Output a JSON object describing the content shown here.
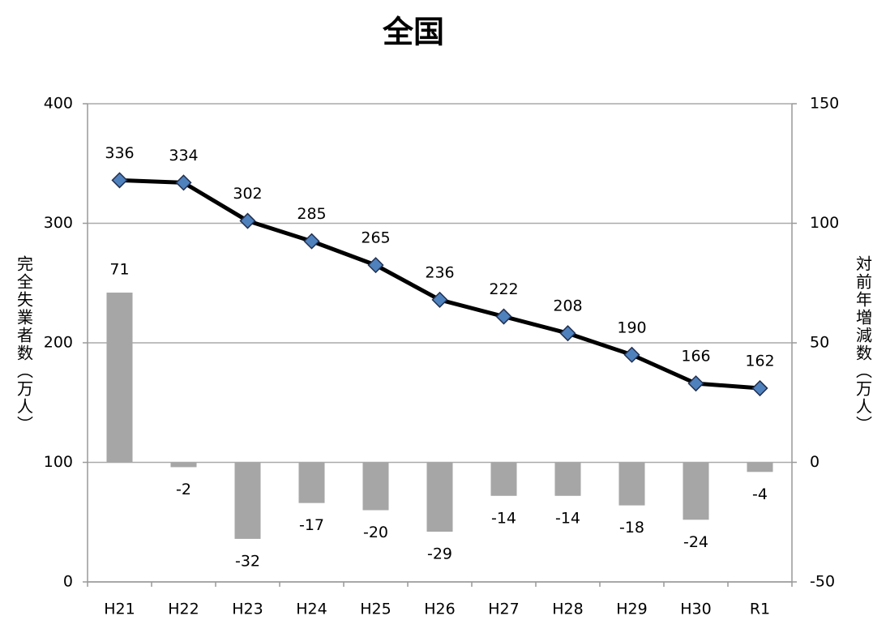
{
  "chart_data": {
    "type": "combo",
    "title": "全国",
    "ylabel": "完全失業者数（万人）",
    "y2label": "対前年増減数（万人）",
    "categories": [
      "H21",
      "H22",
      "H23",
      "H24",
      "H25",
      "H26",
      "H27",
      "H28",
      "H29",
      "H30",
      "R1"
    ],
    "series": [
      {
        "type": "bar",
        "axis": "y2",
        "color": "#a6a6a6",
        "values": [
          71,
          -2,
          -32,
          -17,
          -20,
          -29,
          -14,
          -14,
          -18,
          -24,
          -4
        ]
      },
      {
        "type": "line",
        "axis": "y",
        "color": "#000000",
        "marker_color": "#4f81bd",
        "values": [
          336,
          334,
          302,
          285,
          265,
          236,
          222,
          208,
          190,
          166,
          162
        ]
      }
    ],
    "ylim": [
      0,
      400
    ],
    "yticks": [
      0,
      100,
      200,
      300,
      400
    ],
    "y2lim": [
      -50,
      150
    ],
    "y2ticks": [
      -50,
      0,
      50,
      100,
      150
    ],
    "grid": true
  }
}
